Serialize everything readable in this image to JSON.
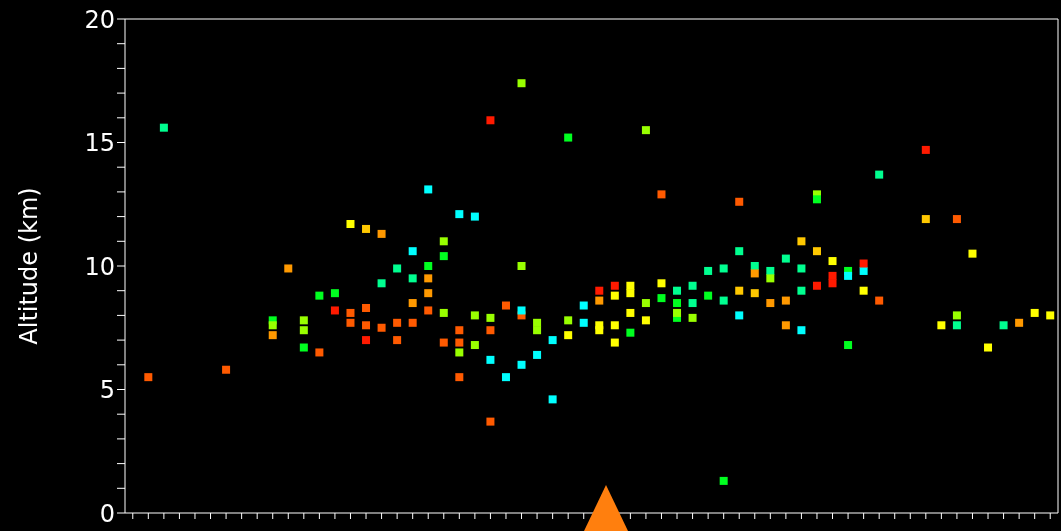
{
  "chart_data": {
    "type": "scatter",
    "ylabel": "Altitude (km)",
    "marker": "square",
    "grid": false,
    "legend": false,
    "categories": [
      null,
      null,
      null,
      null,
      null,
      null,
      null,
      null,
      null,
      null,
      null,
      null,
      null,
      null,
      null,
      null,
      null,
      null,
      null,
      null,
      null,
      null,
      null,
      null,
      null,
      null,
      null,
      null,
      null,
      null,
      null,
      null,
      null,
      null,
      null,
      null,
      null,
      null,
      null,
      null,
      null,
      null,
      null,
      null,
      null,
      null,
      null,
      null,
      null,
      null,
      null,
      null,
      null,
      null,
      null,
      null,
      null,
      null,
      null,
      null
    ],
    "ylim": [
      0,
      20
    ],
    "yticks": [
      0,
      {
        "value": 1,
        "label": null
      },
      {
        "value": 2,
        "label": null
      },
      {
        "value": 3,
        "label": null
      },
      {
        "value": 4,
        "label": null
      },
      5,
      {
        "value": 6,
        "label": null
      },
      {
        "value": 7,
        "label": null
      },
      {
        "value": 8,
        "label": null
      },
      {
        "value": 9,
        "label": null
      },
      10,
      {
        "value": 11,
        "label": null
      },
      {
        "value": 12,
        "label": null
      },
      {
        "value": 13,
        "label": null
      },
      {
        "value": 14,
        "label": null
      },
      15,
      {
        "value": 16,
        "label": null
      },
      {
        "value": 17,
        "label": null
      },
      {
        "value": 18,
        "label": null
      },
      {
        "value": 19,
        "label": null
      },
      20
    ],
    "series": [
      {
        "values": [
          null,
          5.5,
          15.6,
          null,
          null,
          null,
          5.8,
          null,
          null,
          7.8,
          9.9,
          7.4,
          8.8,
          8.9,
          11.7,
          11.5,
          11.3,
          7.7,
          7.7,
          13.1,
          11.0,
          7.4,
          8.0,
          7.9,
          8.4,
          10.0,
          6.4,
          4.6,
          7.8,
          7.7,
          7.6,
          7.6,
          9.2,
          8.5,
          8.7,
          8.5,
          7.9,
          9.8,
          8.6,
          10.6,
          10.0,
          9.8,
          10.3,
          11.0,
          12.9,
          9.6,
          9.8,
          9.0,
          13.7,
          null,
          null,
          14.7,
          7.6,
          11.9,
          10.5,
          6.7,
          7.6,
          7.7,
          8.1,
          8.0
        ],
        "colors": [
          null,
          "#ff5a00",
          "#00ff90",
          null,
          null,
          null,
          "#ff5a00",
          null,
          null,
          "#00ff20",
          "#ff9900",
          "#99ff00",
          "#00ff20",
          "#00ff20",
          "#ffff00",
          "#ffc800",
          "#ff9900",
          "#ff5a00",
          "#ff5a00",
          "#00ffff",
          "#99ff00",
          "#ff5a00",
          "#99ff00",
          "#99ff00",
          "#ff5a00",
          "#99ff00",
          "#00ffff",
          "#00ffff",
          "#99ff00",
          "#00ffff",
          "#ffff00",
          "#ffff00",
          "#ffff00",
          "#99ff00",
          "#00ff20",
          "#00ff20",
          "#99ff00",
          "#00ff90",
          "#00ff90",
          "#00ff90",
          "#00ff90",
          "#00ff90",
          "#00ff90",
          "#ffc800",
          "#99ff00",
          "#ff1a00",
          "#00ff20",
          "#ffff00",
          "#00ff90",
          null,
          null,
          "#ff1a00",
          "#ffff00",
          "#ff5a00",
          "#ffff00",
          "#ffff00",
          "#00ff90",
          "#ff9900",
          "#ffff00",
          "#ffff00"
        ]
      },
      {
        "values": [
          null,
          null,
          null,
          null,
          null,
          null,
          null,
          null,
          null,
          7.6,
          null,
          7.8,
          6.5,
          null,
          8.1,
          8.3,
          7.5,
          7.0,
          8.5,
          8.2,
          10.4,
          6.9,
          6.8,
          7.4,
          5.5,
          8.0,
          7.4,
          7.0,
          7.2,
          8.4,
          7.4,
          9.2,
          8.9,
          7.8,
          9.3,
          7.9,
          8.5,
          8.8,
          9.9,
          9.0,
          9.7,
          8.5,
          8.6,
          9.9,
          12.7,
          9.3,
          9.6,
          9.8,
          8.6,
          null,
          null,
          11.9,
          null,
          8.0,
          null,
          null,
          null,
          null,
          null,
          null
        ],
        "colors": [
          null,
          null,
          null,
          null,
          null,
          null,
          null,
          null,
          null,
          "#99ff00",
          null,
          "#99ff00",
          "#ff5a00",
          null,
          "#ff5a00",
          "#ff5a00",
          "#ff5a00",
          "#ff5a00",
          "#ff9900",
          "#ff5a00",
          "#00ff20",
          "#ff5a00",
          "#99ff00",
          "#ff5a00",
          "#00ffff",
          "#ff5a00",
          "#99ff00",
          "#00ffff",
          "#ffff00",
          "#00ffff",
          "#ffff00",
          "#ff1a00",
          "#ffff00",
          "#ffff00",
          "#ffff00",
          "#00ff20",
          "#00ff90",
          "#00ff20",
          "#00ff90",
          "#ffc800",
          "#ff9900",
          "#ff9900",
          "#ff9900",
          "#00ff90",
          "#00ff20",
          "#ff1a00",
          "#00ffff",
          "#00ffff",
          "#ff5a00",
          null,
          null,
          "#ffc800",
          null,
          "#99ff00",
          null,
          null,
          null,
          null,
          null,
          null
        ]
      },
      {
        "values": [
          null,
          null,
          null,
          null,
          null,
          null,
          null,
          null,
          null,
          7.2,
          null,
          6.7,
          null,
          8.2,
          7.7,
          7.6,
          9.3,
          9.9,
          9.5,
          8.9,
          8.1,
          6.5,
          12.0,
          6.2,
          null,
          8.2,
          7.7,
          null,
          15.2,
          null,
          8.6,
          8.8,
          8.1,
          15.5,
          12.9,
          9.0,
          9.2,
          null,
          null,
          8.0,
          8.9,
          9.5,
          7.6,
          9.0,
          10.6,
          10.2,
          6.8,
          10.1,
          null,
          null,
          null,
          null,
          null,
          7.6,
          null,
          null,
          null,
          null,
          null,
          null
        ],
        "colors": [
          null,
          null,
          null,
          null,
          null,
          null,
          null,
          null,
          null,
          "#ff9900",
          null,
          "#00ff20",
          null,
          "#ff1a00",
          "#ff5a00",
          "#ff5a00",
          "#00ff90",
          "#00ff90",
          "#00ff90",
          "#ff9900",
          "#99ff00",
          "#99ff00",
          "#00ffff",
          "#00ffff",
          null,
          "#00ffff",
          "#99ff00",
          null,
          "#00ff20",
          null,
          "#ff9900",
          "#ffff00",
          "#ffff00",
          "#99ff00",
          "#ff5a00",
          "#00ff90",
          "#00ff90",
          null,
          null,
          "#00ffff",
          "#ffc800",
          "#99ff00",
          "#ff9900",
          "#00ff90",
          "#ffc800",
          "#ffff00",
          "#00ff20",
          "#ff1a00",
          null,
          null,
          null,
          null,
          null,
          "#00ff90",
          null,
          null,
          null,
          null,
          null,
          null
        ]
      },
      {
        "values": [
          null,
          null,
          null,
          null,
          null,
          null,
          null,
          null,
          null,
          null,
          null,
          null,
          null,
          null,
          null,
          7.0,
          null,
          null,
          10.6,
          9.5,
          6.9,
          5.5,
          null,
          3.7,
          null,
          6.0,
          null,
          null,
          null,
          null,
          9.0,
          6.9,
          7.3,
          null,
          null,
          8.1,
          null,
          null,
          1.3,
          12.6,
          null,
          null,
          null,
          7.4,
          9.2,
          null,
          null,
          null,
          null,
          null,
          null,
          null,
          null,
          null,
          null,
          null,
          null,
          null,
          null,
          null
        ],
        "colors": [
          null,
          null,
          null,
          null,
          null,
          null,
          null,
          null,
          null,
          null,
          null,
          null,
          null,
          null,
          null,
          "#ff1a00",
          null,
          null,
          "#00ffff",
          "#ff9900",
          "#ff5a00",
          "#ff5a00",
          null,
          "#ff5a00",
          null,
          "#00ffff",
          null,
          null,
          null,
          null,
          "#ff1a00",
          "#ffff00",
          "#00ff20",
          null,
          null,
          "#99ff00",
          null,
          null,
          "#00ff20",
          "#ff5a00",
          null,
          null,
          null,
          "#00ffff",
          "#ff1a00",
          null,
          null,
          null,
          null,
          null,
          null,
          null,
          null,
          null,
          null,
          null,
          null,
          null,
          null,
          null
        ]
      },
      {
        "values": [
          null,
          null,
          null,
          null,
          null,
          null,
          null,
          null,
          null,
          null,
          null,
          null,
          null,
          null,
          null,
          null,
          null,
          null,
          null,
          10.0,
          null,
          12.1,
          null,
          15.9,
          null,
          17.4,
          null,
          null,
          null,
          null,
          null,
          null,
          null,
          null,
          null,
          null,
          null,
          null,
          null,
          null,
          null,
          null,
          null,
          null,
          null,
          null,
          null,
          null,
          null,
          null,
          null,
          null,
          null,
          null,
          null,
          null,
          null,
          null,
          null,
          null
        ],
        "colors": [
          null,
          null,
          null,
          null,
          null,
          null,
          null,
          null,
          null,
          null,
          null,
          null,
          null,
          null,
          null,
          null,
          null,
          null,
          null,
          "#00ff20",
          null,
          "#00ffff",
          null,
          "#ff1a00",
          null,
          "#99ff00",
          null,
          null,
          null,
          null,
          null,
          null,
          null,
          null,
          null,
          null,
          null,
          null,
          null,
          null,
          null,
          null,
          null,
          null,
          null,
          null,
          null,
          null,
          null,
          null,
          null,
          null,
          null,
          null,
          null,
          null,
          null,
          null,
          null,
          null
        ]
      }
    ]
  }
}
